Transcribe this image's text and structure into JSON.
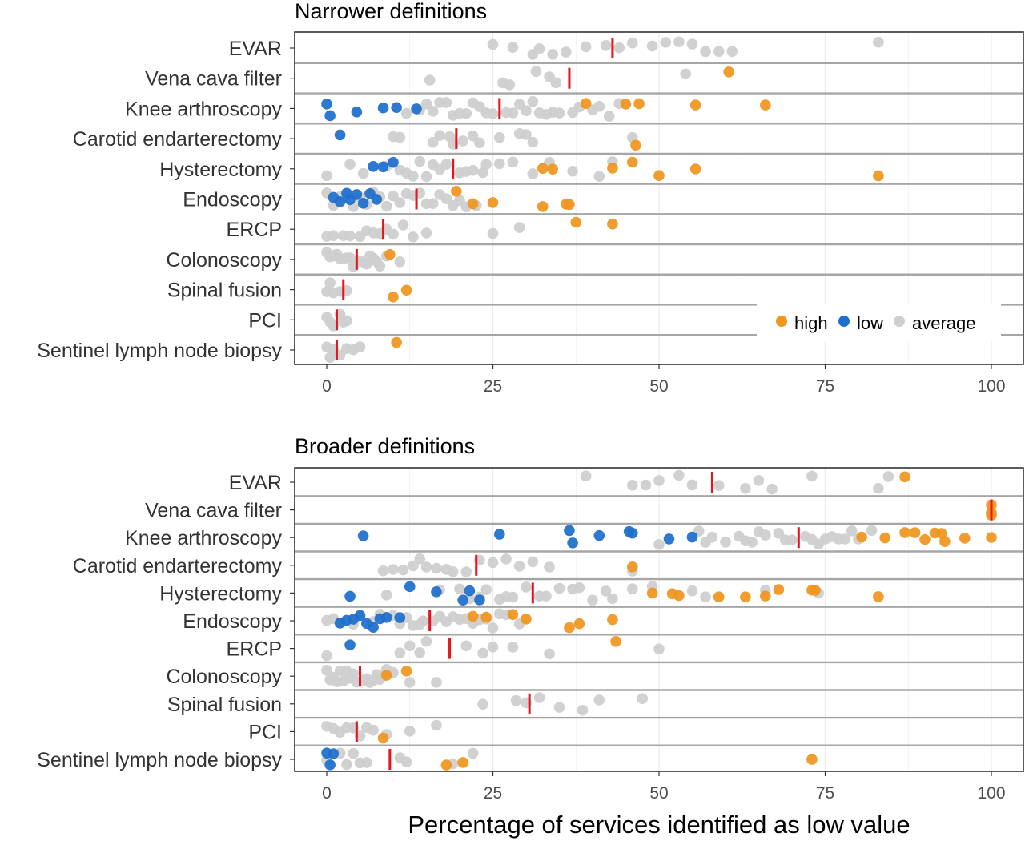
{
  "chart_data": {
    "type": "scatter",
    "xlabel": "Percentage of services identified as low value",
    "xlim": [
      0,
      100
    ],
    "xticks": [
      0,
      25,
      50,
      75,
      100
    ],
    "categories": [
      "EVAR",
      "Vena cava filter",
      "Knee arthroscopy",
      "Carotid endarterectomy",
      "Hysterectomy",
      "Endoscopy",
      "ERCP",
      "Colonoscopy",
      "Spinal fusion",
      "PCI",
      "Sentinel lymph node biopsy"
    ],
    "legend": {
      "placement": "bottom-right inside top panel",
      "entries": [
        {
          "label": "high",
          "color": "#f0951e"
        },
        {
          "label": "low",
          "color": "#1e6fcc"
        },
        {
          "label": "average",
          "color": "#cfcfcf"
        }
      ]
    },
    "median_color": "#e8141c",
    "panels": [
      {
        "title": "Narrower definitions",
        "rows": [
          {
            "name": "EVAR",
            "median": 43,
            "average": [
              25,
              28,
              31,
              32,
              34,
              36,
              39,
              42,
              44,
              46,
              49,
              51,
              53,
              55,
              57,
              59,
              61,
              83
            ],
            "low": [],
            "high": []
          },
          {
            "name": "Vena cava filter",
            "median": 36.5,
            "average": [
              15.5,
              26.5,
              27.5,
              31.5,
              33.5,
              34.5,
              54
            ],
            "low": [],
            "high": [
              60.5
            ]
          },
          {
            "name": "Knee arthroscopy",
            "median": 26,
            "average": [
              12,
              14,
              15,
              16,
              17,
              18,
              19,
              20,
              21,
              22,
              23,
              24,
              25,
              27,
              28,
              29,
              30,
              31,
              32,
              33,
              34,
              35,
              37,
              38,
              40,
              41,
              42.5,
              44
            ],
            "low": [
              0,
              0.5,
              4.5,
              8.5,
              10.5,
              13.5
            ],
            "high": [
              39,
              45,
              47,
              55.5,
              66
            ]
          },
          {
            "name": "Carotid endarterectomy",
            "median": 19.5,
            "average": [
              10,
              11,
              16,
              17,
              18.5,
              19,
              20.5,
              22,
              23,
              26,
              29,
              30,
              31,
              46
            ],
            "low": [
              2
            ],
            "high": [
              46.5
            ]
          },
          {
            "name": "Hysterectomy",
            "median": 19,
            "average": [
              0,
              3.5,
              5.5,
              9,
              11,
              12,
              13,
              14,
              15,
              16,
              17,
              18,
              20,
              21,
              22,
              23.5,
              24,
              26,
              28,
              31,
              33.5,
              37,
              41,
              43
            ],
            "low": [
              7,
              8.5,
              10
            ],
            "high": [
              32.5,
              34,
              43,
              46,
              50,
              55.5,
              83
            ]
          },
          {
            "name": "Endoscopy",
            "median": 13.5,
            "average": [
              0,
              1,
              2,
              3,
              4,
              5,
              6,
              7,
              8,
              9,
              10,
              11,
              12,
              13,
              14,
              15,
              16,
              17,
              18,
              19,
              20,
              21,
              22.5
            ],
            "low": [
              1,
              2,
              3,
              3.5,
              4.5,
              5.5,
              6.5,
              7.5
            ],
            "high": [
              19.5,
              22,
              25,
              32.5,
              36,
              36.5
            ]
          },
          {
            "name": "ERCP",
            "median": 8.5,
            "average": [
              0,
              1,
              2.5,
              3.5,
              5,
              6,
              7,
              8,
              9,
              10,
              11.5,
              13,
              15,
              25,
              29
            ],
            "low": [],
            "high": [
              37.5,
              43
            ]
          },
          {
            "name": "Colonoscopy",
            "median": 4.5,
            "average": [
              0,
              0.5,
              1,
              1.5,
              2,
              2.5,
              3,
              3.5,
              4,
              5,
              5.5,
              6,
              6.5,
              7,
              7.5,
              8,
              9,
              11
            ],
            "low": [],
            "high": [
              9.5
            ]
          },
          {
            "name": "Spinal fusion",
            "median": 2.5,
            "average": [
              0,
              0.5,
              1,
              2,
              3
            ],
            "low": [],
            "high": [
              10,
              12
            ]
          },
          {
            "name": "PCI",
            "median": 1.5,
            "average": [
              0,
              0.5,
              1,
              2,
              2.5,
              3
            ],
            "low": [],
            "high": []
          },
          {
            "name": "Sentinel lymph node biopsy",
            "median": 1.5,
            "average": [
              0,
              0.5,
              1,
              2,
              3,
              4,
              5
            ],
            "low": [],
            "high": [
              10.5
            ]
          }
        ]
      },
      {
        "title": "Broader definitions",
        "rows": [
          {
            "name": "EVAR",
            "median": 58,
            "average": [
              39,
              46,
              48,
              50,
              53,
              55,
              59,
              63,
              65,
              67,
              73,
              83,
              84.5
            ],
            "low": [],
            "high": [
              87
            ]
          },
          {
            "name": "Vena cava filter",
            "median": 100,
            "average": [],
            "low": [],
            "high": [
              100,
              100,
              100
            ]
          },
          {
            "name": "Knee arthroscopy",
            "median": 71,
            "average": [
              50,
              56,
              57,
              58,
              60,
              62,
              63,
              64,
              65,
              66,
              68,
              69,
              70,
              72,
              73,
              74,
              75,
              76,
              77,
              78,
              79,
              80,
              82
            ],
            "low": [
              5.5,
              26,
              36.5,
              37,
              41,
              45.5,
              46,
              51.5,
              55
            ],
            "high": [
              80.5,
              84,
              87,
              88.5,
              90,
              91.5,
              92.5,
              93,
              96,
              100
            ]
          },
          {
            "name": "Carotid endarterectomy",
            "median": 22.5,
            "average": [
              8.5,
              10,
              11.5,
              13,
              14,
              15,
              16.5,
              18,
              19,
              21,
              23,
              25,
              27,
              29,
              31,
              33.5,
              46
            ],
            "low": [],
            "high": [
              46
            ]
          },
          {
            "name": "Hysterectomy",
            "median": 31,
            "average": [
              9,
              17,
              20,
              21.5,
              23,
              24,
              26,
              27,
              28,
              30,
              32,
              33,
              35,
              37,
              38,
              40,
              42,
              43,
              46,
              49,
              55,
              57,
              66,
              74
            ],
            "low": [
              3.5,
              12.5,
              16.5,
              20.5,
              21.5,
              23
            ],
            "high": [
              49,
              52,
              53,
              59,
              63,
              66,
              68,
              73,
              73.5,
              83
            ]
          },
          {
            "name": "Endoscopy",
            "median": 15.5,
            "average": [
              0,
              1,
              2,
              4,
              5,
              7,
              8,
              10,
              11,
              12,
              13,
              14,
              14.5,
              16,
              17,
              18,
              19,
              20,
              21,
              22,
              23,
              24,
              25,
              26,
              27,
              29
            ],
            "low": [
              2,
              3,
              4,
              5,
              6,
              7,
              8,
              9,
              11
            ],
            "high": [
              22,
              24,
              28,
              30,
              36.5,
              38,
              43
            ]
          },
          {
            "name": "ERCP",
            "median": 18.5,
            "average": [
              0,
              11,
              12.5,
              14,
              15,
              21,
              23.5,
              25,
              28,
              33.5,
              50
            ],
            "low": [
              3.5
            ],
            "high": [
              43.5
            ]
          },
          {
            "name": "Colonoscopy",
            "median": 5,
            "average": [
              0,
              0.5,
              1,
              1.5,
              2,
              2.5,
              3,
              3.5,
              4,
              4.5,
              5.5,
              6,
              6.5,
              7,
              7.5,
              8,
              8.5,
              9,
              10,
              12.5,
              16.5
            ],
            "low": [],
            "high": [
              9,
              12
            ]
          },
          {
            "name": "Spinal fusion",
            "median": 30.5,
            "average": [
              23.5,
              28.5,
              30,
              32,
              35,
              38.5,
              41,
              47.5
            ],
            "low": [],
            "high": []
          },
          {
            "name": "PCI",
            "median": 4.5,
            "average": [
              0,
              1,
              2,
              3,
              4,
              5,
              6,
              7,
              9,
              12.5,
              16.5
            ],
            "low": [],
            "high": [
              8.5
            ]
          },
          {
            "name": "Sentinel lymph node biopsy",
            "median": 9.5,
            "average": [
              0,
              2,
              3,
              4,
              5,
              6,
              11,
              12,
              19,
              22
            ],
            "low": [
              0,
              0.5,
              1
            ],
            "high": [
              18,
              20.5,
              73
            ]
          }
        ]
      }
    ]
  }
}
